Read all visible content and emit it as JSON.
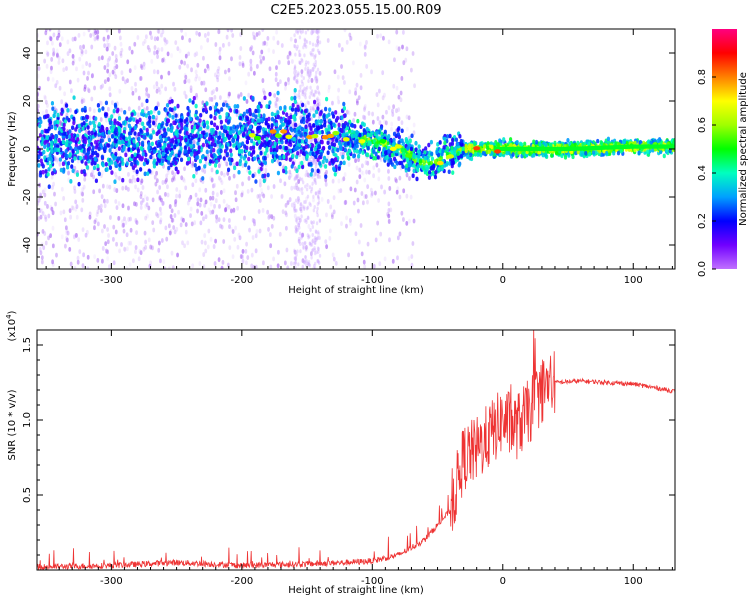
{
  "title": "C2E5.2023.055.15.00.R09",
  "chart_data": [
    {
      "type": "heatmap",
      "ylabel": "Frequency (Hz)",
      "xlabel": "Height of straight line (km)",
      "xlim": [
        -357,
        132
      ],
      "ylim": [
        -50,
        50
      ],
      "xticks": [
        -300,
        -200,
        -100,
        0,
        100
      ],
      "xtick_labels": [
        "-300",
        "-200",
        "-100",
        "0",
        "100"
      ],
      "yticks": [
        -40,
        -20,
        0,
        20,
        40
      ],
      "ytick_labels": [
        "-40",
        "-20",
        "0",
        "20",
        "40"
      ],
      "colorbar": {
        "label": "Normalized spectral amplitude",
        "range": [
          0,
          1
        ],
        "ticks": [
          0.0,
          0.2,
          0.4,
          0.6,
          0.8
        ],
        "tick_labels": [
          "0.0",
          "0.2",
          "0.4",
          "0.6",
          "0.8"
        ]
      },
      "ridge": [
        {
          "x": -357,
          "f": 2
        },
        {
          "x": -300,
          "f": 3
        },
        {
          "x": -250,
          "f": 4
        },
        {
          "x": -200,
          "f": 6
        },
        {
          "x": -150,
          "f": 6
        },
        {
          "x": -120,
          "f": 5
        },
        {
          "x": -100,
          "f": 3
        },
        {
          "x": -80,
          "f": 0
        },
        {
          "x": -60,
          "f": -6
        },
        {
          "x": -50,
          "f": -5
        },
        {
          "x": -40,
          "f": -2
        },
        {
          "x": -30,
          "f": 0
        },
        {
          "x": 0,
          "f": 0
        },
        {
          "x": 50,
          "f": 0
        },
        {
          "x": 100,
          "f": 1
        },
        {
          "x": 132,
          "f": 1
        }
      ]
    },
    {
      "type": "line",
      "ylabel": "SNR (10 * v/v)",
      "yunit": "(x10",
      "yunit_exp": "4",
      "yunit_close": ")",
      "xlabel": "Height of straight line (km)",
      "xlim": [
        -357,
        132
      ],
      "ylim": [
        0,
        1.6
      ],
      "xticks": [
        -300,
        -200,
        -100,
        0,
        100
      ],
      "xtick_labels": [
        "-300",
        "-200",
        "-100",
        "0",
        "100"
      ],
      "yticks": [
        0.5,
        1.0,
        1.5
      ],
      "ytick_labels": [
        "0.5",
        "1.0",
        "1.5"
      ],
      "color": "#ee3333",
      "series_envelope": [
        {
          "x": -357,
          "y": 0.02
        },
        {
          "x": -300,
          "y": 0.03
        },
        {
          "x": -250,
          "y": 0.05
        },
        {
          "x": -200,
          "y": 0.03
        },
        {
          "x": -150,
          "y": 0.04
        },
        {
          "x": -120,
          "y": 0.05
        },
        {
          "x": -100,
          "y": 0.06
        },
        {
          "x": -80,
          "y": 0.1
        },
        {
          "x": -60,
          "y": 0.2
        },
        {
          "x": -50,
          "y": 0.3
        },
        {
          "x": -40,
          "y": 0.4
        },
        {
          "x": -30,
          "y": 0.75
        },
        {
          "x": -20,
          "y": 0.8
        },
        {
          "x": -10,
          "y": 0.9
        },
        {
          "x": 0,
          "y": 1.0
        },
        {
          "x": 10,
          "y": 0.95
        },
        {
          "x": 20,
          "y": 1.05
        },
        {
          "x": 30,
          "y": 1.2
        },
        {
          "x": 40,
          "y": 1.25
        },
        {
          "x": 60,
          "y": 1.26
        },
        {
          "x": 80,
          "y": 1.25
        },
        {
          "x": 100,
          "y": 1.24
        },
        {
          "x": 120,
          "y": 1.21
        },
        {
          "x": 132,
          "y": 1.19
        }
      ]
    }
  ]
}
